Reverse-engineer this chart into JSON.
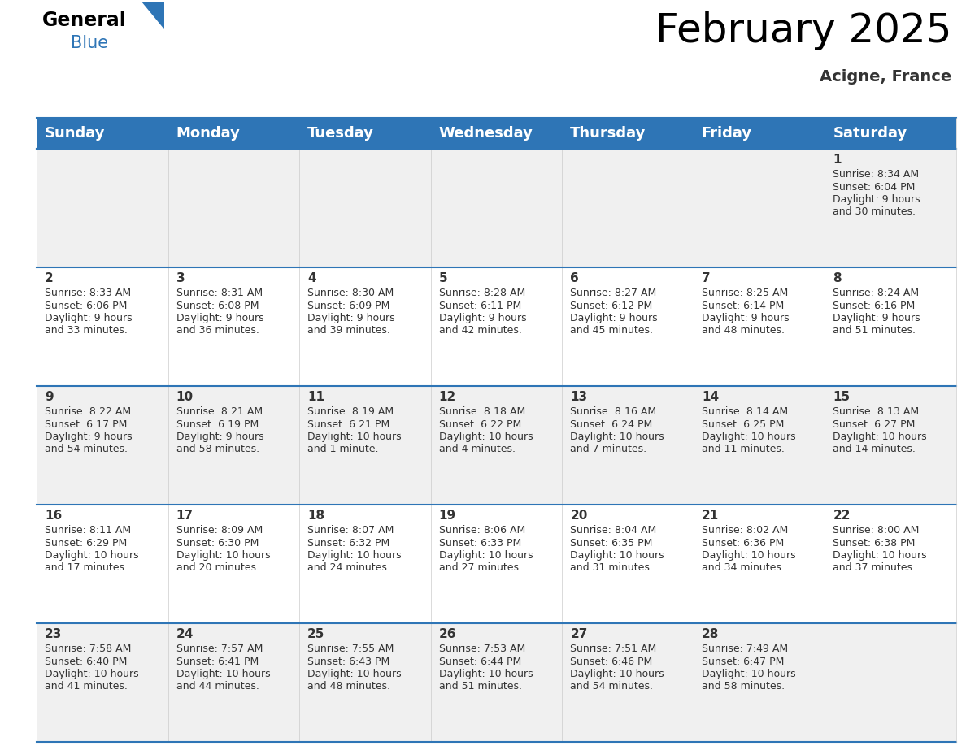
{
  "title": "February 2025",
  "subtitle": "Acigne, France",
  "header_color": "#2E75B6",
  "header_text_color": "#FFFFFF",
  "background_color": "#FFFFFF",
  "cell_alt_color": "#F0F0F0",
  "cell_white_color": "#FFFFFF",
  "border_color": "#2E75B6",
  "days_of_week": [
    "Sunday",
    "Monday",
    "Tuesday",
    "Wednesday",
    "Thursday",
    "Friday",
    "Saturday"
  ],
  "title_fontsize": 36,
  "subtitle_fontsize": 14,
  "header_fontsize": 13,
  "day_num_fontsize": 11,
  "cell_fontsize": 9,
  "calendar": [
    [
      null,
      null,
      null,
      null,
      null,
      null,
      {
        "day": "1",
        "sunrise": "8:34 AM",
        "sunset": "6:04 PM",
        "daylight": "9 hours\nand 30 minutes."
      }
    ],
    [
      {
        "day": "2",
        "sunrise": "8:33 AM",
        "sunset": "6:06 PM",
        "daylight": "9 hours\nand 33 minutes."
      },
      {
        "day": "3",
        "sunrise": "8:31 AM",
        "sunset": "6:08 PM",
        "daylight": "9 hours\nand 36 minutes."
      },
      {
        "day": "4",
        "sunrise": "8:30 AM",
        "sunset": "6:09 PM",
        "daylight": "9 hours\nand 39 minutes."
      },
      {
        "day": "5",
        "sunrise": "8:28 AM",
        "sunset": "6:11 PM",
        "daylight": "9 hours\nand 42 minutes."
      },
      {
        "day": "6",
        "sunrise": "8:27 AM",
        "sunset": "6:12 PM",
        "daylight": "9 hours\nand 45 minutes."
      },
      {
        "day": "7",
        "sunrise": "8:25 AM",
        "sunset": "6:14 PM",
        "daylight": "9 hours\nand 48 minutes."
      },
      {
        "day": "8",
        "sunrise": "8:24 AM",
        "sunset": "6:16 PM",
        "daylight": "9 hours\nand 51 minutes."
      }
    ],
    [
      {
        "day": "9",
        "sunrise": "8:22 AM",
        "sunset": "6:17 PM",
        "daylight": "9 hours\nand 54 minutes."
      },
      {
        "day": "10",
        "sunrise": "8:21 AM",
        "sunset": "6:19 PM",
        "daylight": "9 hours\nand 58 minutes."
      },
      {
        "day": "11",
        "sunrise": "8:19 AM",
        "sunset": "6:21 PM",
        "daylight": "10 hours\nand 1 minute."
      },
      {
        "day": "12",
        "sunrise": "8:18 AM",
        "sunset": "6:22 PM",
        "daylight": "10 hours\nand 4 minutes."
      },
      {
        "day": "13",
        "sunrise": "8:16 AM",
        "sunset": "6:24 PM",
        "daylight": "10 hours\nand 7 minutes."
      },
      {
        "day": "14",
        "sunrise": "8:14 AM",
        "sunset": "6:25 PM",
        "daylight": "10 hours\nand 11 minutes."
      },
      {
        "day": "15",
        "sunrise": "8:13 AM",
        "sunset": "6:27 PM",
        "daylight": "10 hours\nand 14 minutes."
      }
    ],
    [
      {
        "day": "16",
        "sunrise": "8:11 AM",
        "sunset": "6:29 PM",
        "daylight": "10 hours\nand 17 minutes."
      },
      {
        "day": "17",
        "sunrise": "8:09 AM",
        "sunset": "6:30 PM",
        "daylight": "10 hours\nand 20 minutes."
      },
      {
        "day": "18",
        "sunrise": "8:07 AM",
        "sunset": "6:32 PM",
        "daylight": "10 hours\nand 24 minutes."
      },
      {
        "day": "19",
        "sunrise": "8:06 AM",
        "sunset": "6:33 PM",
        "daylight": "10 hours\nand 27 minutes."
      },
      {
        "day": "20",
        "sunrise": "8:04 AM",
        "sunset": "6:35 PM",
        "daylight": "10 hours\nand 31 minutes."
      },
      {
        "day": "21",
        "sunrise": "8:02 AM",
        "sunset": "6:36 PM",
        "daylight": "10 hours\nand 34 minutes."
      },
      {
        "day": "22",
        "sunrise": "8:00 AM",
        "sunset": "6:38 PM",
        "daylight": "10 hours\nand 37 minutes."
      }
    ],
    [
      {
        "day": "23",
        "sunrise": "7:58 AM",
        "sunset": "6:40 PM",
        "daylight": "10 hours\nand 41 minutes."
      },
      {
        "day": "24",
        "sunrise": "7:57 AM",
        "sunset": "6:41 PM",
        "daylight": "10 hours\nand 44 minutes."
      },
      {
        "day": "25",
        "sunrise": "7:55 AM",
        "sunset": "6:43 PM",
        "daylight": "10 hours\nand 48 minutes."
      },
      {
        "day": "26",
        "sunrise": "7:53 AM",
        "sunset": "6:44 PM",
        "daylight": "10 hours\nand 51 minutes."
      },
      {
        "day": "27",
        "sunrise": "7:51 AM",
        "sunset": "6:46 PM",
        "daylight": "10 hours\nand 54 minutes."
      },
      {
        "day": "28",
        "sunrise": "7:49 AM",
        "sunset": "6:47 PM",
        "daylight": "10 hours\nand 58 minutes."
      },
      null
    ]
  ]
}
